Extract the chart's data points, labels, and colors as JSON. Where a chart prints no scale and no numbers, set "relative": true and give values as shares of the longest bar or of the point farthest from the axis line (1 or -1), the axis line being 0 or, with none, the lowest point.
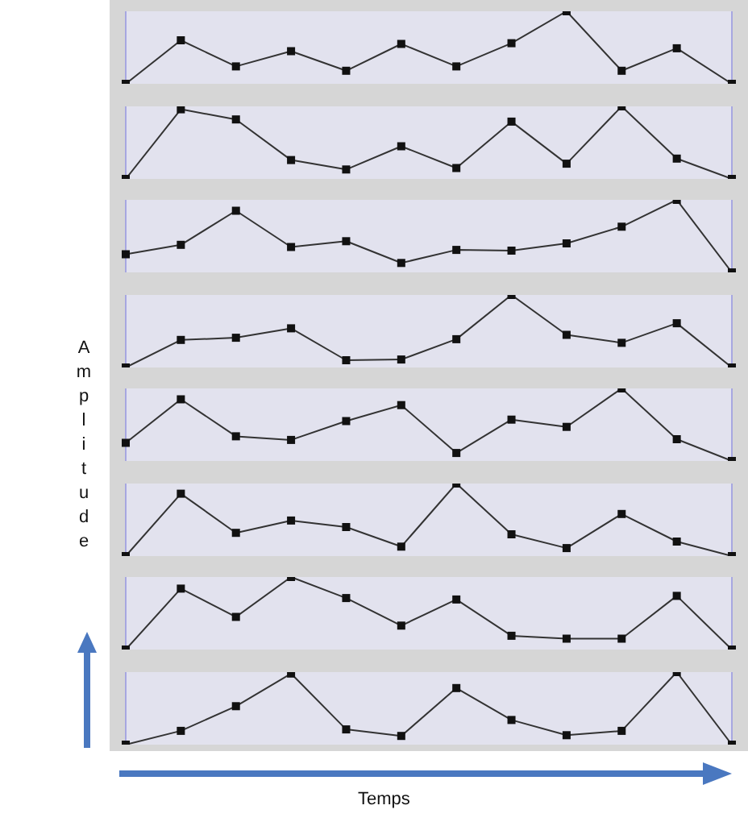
{
  "chart_data": [
    {
      "type": "line",
      "relative": true,
      "categories": [
        null,
        null,
        null,
        null,
        null,
        null,
        null,
        null,
        null,
        null,
        null,
        null
      ],
      "values": [
        0,
        0.6,
        0.24,
        0.45,
        0.18,
        0.55,
        0.24,
        0.56,
        1,
        0.18,
        0.49,
        0
      ],
      "color": "#333333",
      "marker": "square",
      "line_style": "solid",
      "grid": "x",
      "tick_labels": false
    },
    {
      "type": "line",
      "relative": true,
      "categories": [
        null,
        null,
        null,
        null,
        null,
        null,
        null,
        null,
        null,
        null,
        null,
        null
      ],
      "values": [
        0,
        0.96,
        0.82,
        0.26,
        0.13,
        0.45,
        0.15,
        0.79,
        0.21,
        1,
        0.28,
        0
      ],
      "color": "#333333",
      "marker": "square",
      "line_style": "solid",
      "grid": "x",
      "tick_labels": false
    },
    {
      "type": "line",
      "relative": true,
      "categories": [
        null,
        null,
        null,
        null,
        null,
        null,
        null,
        null,
        null,
        null,
        null,
        null
      ],
      "values": [
        0.25,
        0.38,
        0.85,
        0.35,
        0.43,
        0.13,
        0.31,
        0.3,
        0.4,
        0.63,
        1,
        0
      ],
      "color": "#333333",
      "marker": "square",
      "line_style": "solid",
      "grid": "x",
      "tick_labels": false
    },
    {
      "type": "line",
      "relative": true,
      "categories": [
        null,
        null,
        null,
        null,
        null,
        null,
        null,
        null,
        null,
        null,
        null,
        null
      ],
      "values": [
        0,
        0.38,
        0.41,
        0.54,
        0.1,
        0.11,
        0.39,
        1,
        0.45,
        0.34,
        0.61,
        0
      ],
      "color": "#333333",
      "marker": "square",
      "line_style": "solid",
      "grid": "x",
      "tick_labels": false
    },
    {
      "type": "line",
      "relative": true,
      "categories": [
        null,
        null,
        null,
        null,
        null,
        null,
        null,
        null,
        null,
        null,
        null,
        null
      ],
      "values": [
        0.25,
        0.85,
        0.34,
        0.29,
        0.55,
        0.77,
        0.11,
        0.57,
        0.47,
        1,
        0.3,
        0
      ],
      "color": "#333333",
      "marker": "square",
      "line_style": "solid",
      "grid": "x",
      "tick_labels": false
    },
    {
      "type": "line",
      "relative": true,
      "categories": [
        null,
        null,
        null,
        null,
        null,
        null,
        null,
        null,
        null,
        null,
        null,
        null
      ],
      "values": [
        0,
        0.86,
        0.32,
        0.49,
        0.4,
        0.13,
        1,
        0.3,
        0.11,
        0.58,
        0.2,
        0
      ],
      "color": "#333333",
      "marker": "square",
      "line_style": "solid",
      "grid": "x",
      "tick_labels": false
    },
    {
      "type": "line",
      "relative": true,
      "categories": [
        null,
        null,
        null,
        null,
        null,
        null,
        null,
        null,
        null,
        null,
        null,
        null
      ],
      "values": [
        0,
        0.84,
        0.45,
        1,
        0.71,
        0.33,
        0.69,
        0.19,
        0.15,
        0.15,
        0.74,
        0
      ],
      "color": "#333333",
      "marker": "square",
      "line_style": "solid",
      "grid": "x",
      "tick_labels": false
    },
    {
      "type": "line",
      "relative": true,
      "categories": [
        null,
        null,
        null,
        null,
        null,
        null,
        null,
        null,
        null,
        null,
        null,
        null
      ],
      "values": [
        0,
        0.19,
        0.53,
        0.98,
        0.21,
        0.12,
        0.78,
        0.34,
        0.13,
        0.19,
        1,
        0
      ],
      "color": "#333333",
      "marker": "square",
      "line_style": "solid",
      "grid": "x",
      "tick_labels": false,
      "xlabel": "Temps",
      "ylabel": "Amplitude"
    }
  ]
}
